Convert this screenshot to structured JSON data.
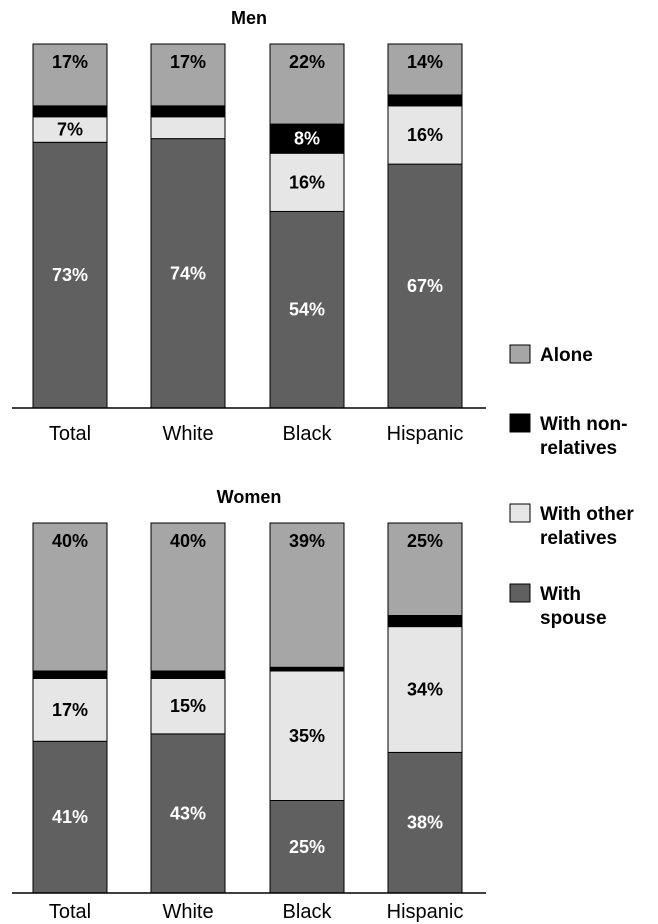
{
  "colors": {
    "alone": "#a6a6a6",
    "with_nonrelatives": "#000000",
    "with_other_relatives": "#e6e6e6",
    "with_spouse": "#606060"
  },
  "legend": {
    "items": [
      {
        "key": "alone",
        "lines": [
          "Alone"
        ]
      },
      {
        "key": "with_nonrelatives",
        "lines": [
          "With non-",
          "relatives"
        ]
      },
      {
        "key": "with_other_relatives",
        "lines": [
          "With other",
          "relatives"
        ]
      },
      {
        "key": "with_spouse",
        "lines": [
          "With",
          "spouse"
        ]
      }
    ]
  },
  "chart_data": [
    {
      "type": "bar",
      "stacked": true,
      "title": "Men",
      "categories": [
        "Total",
        "White",
        "Black",
        "Hispanic"
      ],
      "ylim": [
        0,
        100
      ],
      "series": [
        {
          "name": "With spouse",
          "key": "with_spouse",
          "values": [
            73,
            74,
            54,
            67
          ],
          "labels": [
            "73%",
            "74%",
            "54%",
            "67%"
          ]
        },
        {
          "name": "With other relatives",
          "key": "with_other_relatives",
          "values": [
            7,
            6,
            16,
            16
          ],
          "labels": [
            "7%",
            "6%",
            "16%",
            "16%"
          ]
        },
        {
          "name": "With non-relatives",
          "key": "with_nonrelatives",
          "values": [
            3,
            3,
            8,
            3
          ],
          "labels": [
            "3%",
            "3%",
            "8%",
            "3%"
          ]
        },
        {
          "name": "Alone",
          "key": "alone",
          "values": [
            17,
            17,
            22,
            14
          ],
          "labels": [
            "17%",
            "17%",
            "22%",
            "14%"
          ]
        }
      ]
    },
    {
      "type": "bar",
      "stacked": true,
      "title": "Women",
      "categories": [
        "Total",
        "White",
        "Black",
        "Hispanic"
      ],
      "ylim": [
        0,
        100
      ],
      "series": [
        {
          "name": "With spouse",
          "key": "with_spouse",
          "values": [
            41,
            43,
            25,
            38
          ],
          "labels": [
            "41%",
            "43%",
            "25%",
            "38%"
          ]
        },
        {
          "name": "With other relatives",
          "key": "with_other_relatives",
          "values": [
            17,
            15,
            35,
            34
          ],
          "labels": [
            "17%",
            "15%",
            "35%",
            "34%"
          ]
        },
        {
          "name": "With non-relatives",
          "key": "with_nonrelatives",
          "values": [
            2,
            2,
            1,
            3
          ],
          "labels": [
            "2%",
            "2%",
            "1%",
            "3%"
          ]
        },
        {
          "name": "Alone",
          "key": "alone",
          "values": [
            40,
            40,
            39,
            25
          ],
          "labels": [
            "40%",
            "40%",
            "39%",
            "25%"
          ]
        }
      ]
    }
  ]
}
